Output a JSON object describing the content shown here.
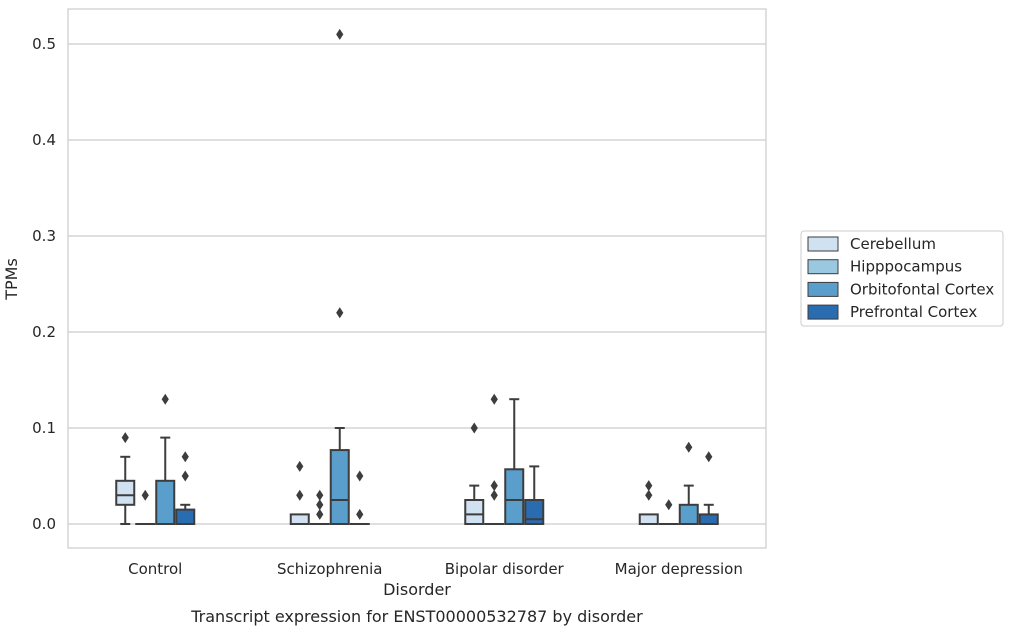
{
  "chart_data": {
    "type": "box",
    "xlabel": "Disorder",
    "ylabel": "TPMs",
    "caption": "Transcript expression for ENST00000532787 by disorder",
    "ylim": [
      -0.025,
      0.537
    ],
    "yticks": [
      0.0,
      0.1,
      0.2,
      0.3,
      0.4,
      0.5
    ],
    "ytick_labels": [
      "0.0",
      "0.1",
      "0.2",
      "0.3",
      "0.4",
      "0.5"
    ],
    "grid": true,
    "legend_position": "right",
    "categories": [
      "Control",
      "Schizophrenia",
      "Bipolar disorder",
      "Major depression"
    ],
    "series": [
      {
        "name": "Cerebellum",
        "color": "#d0e1f2",
        "boxes": [
          {
            "q1": 0.02,
            "median": 0.03,
            "q3": 0.045,
            "whisker_low": 0.0,
            "whisker_high": 0.07,
            "outliers": [
              0.09
            ]
          },
          {
            "q1": 0.0,
            "median": 0.0,
            "q3": 0.01,
            "whisker_low": 0.0,
            "whisker_high": 0.01,
            "outliers": [
              0.03,
              0.06
            ]
          },
          {
            "q1": 0.0,
            "median": 0.01,
            "q3": 0.025,
            "whisker_low": 0.0,
            "whisker_high": 0.04,
            "outliers": [
              0.1
            ]
          },
          {
            "q1": 0.0,
            "median": 0.0,
            "q3": 0.01,
            "whisker_low": 0.0,
            "whisker_high": 0.01,
            "outliers": [
              0.03,
              0.04
            ]
          }
        ]
      },
      {
        "name": "Hipppocampus",
        "color": "#9ac8e0",
        "boxes": [
          {
            "q1": 0.0,
            "median": 0.0,
            "q3": 0.0,
            "whisker_low": 0.0,
            "whisker_high": 0.0,
            "outliers": [
              0.03
            ]
          },
          {
            "q1": 0.0,
            "median": 0.0,
            "q3": 0.0,
            "whisker_low": 0.0,
            "whisker_high": 0.0,
            "outliers": [
              0.01,
              0.02,
              0.03
            ]
          },
          {
            "q1": 0.0,
            "median": 0.0,
            "q3": 0.0,
            "whisker_low": 0.0,
            "whisker_high": 0.0,
            "outliers": [
              0.03,
              0.04,
              0.13
            ]
          },
          {
            "q1": 0.0,
            "median": 0.0,
            "q3": 0.0,
            "whisker_low": 0.0,
            "whisker_high": 0.0,
            "outliers": [
              0.02
            ]
          }
        ]
      },
      {
        "name": "Orbitofontal Cortex",
        "color": "#5a9ecc",
        "boxes": [
          {
            "q1": 0.0,
            "median": 0.0,
            "q3": 0.045,
            "whisker_low": 0.0,
            "whisker_high": 0.09,
            "outliers": [
              0.13
            ]
          },
          {
            "q1": 0.0,
            "median": 0.025,
            "q3": 0.077,
            "whisker_low": 0.0,
            "whisker_high": 0.1,
            "outliers": [
              0.22,
              0.51
            ]
          },
          {
            "q1": 0.0,
            "median": 0.025,
            "q3": 0.057,
            "whisker_low": 0.0,
            "whisker_high": 0.13,
            "outliers": []
          },
          {
            "q1": 0.0,
            "median": 0.0,
            "q3": 0.02,
            "whisker_low": 0.0,
            "whisker_high": 0.04,
            "outliers": [
              0.08
            ]
          }
        ]
      },
      {
        "name": "Prefrontal Cortex",
        "color": "#2a6cb0",
        "boxes": [
          {
            "q1": 0.0,
            "median": 0.0,
            "q3": 0.015,
            "whisker_low": 0.0,
            "whisker_high": 0.02,
            "outliers": [
              0.05,
              0.07
            ]
          },
          {
            "q1": 0.0,
            "median": 0.0,
            "q3": 0.0,
            "whisker_low": 0.0,
            "whisker_high": 0.0,
            "outliers": [
              0.01,
              0.05
            ]
          },
          {
            "q1": 0.0,
            "median": 0.005,
            "q3": 0.025,
            "whisker_low": 0.0,
            "whisker_high": 0.06,
            "outliers": []
          },
          {
            "q1": 0.0,
            "median": 0.0,
            "q3": 0.01,
            "whisker_low": 0.0,
            "whisker_high": 0.02,
            "outliers": [
              0.07
            ]
          }
        ]
      }
    ]
  }
}
